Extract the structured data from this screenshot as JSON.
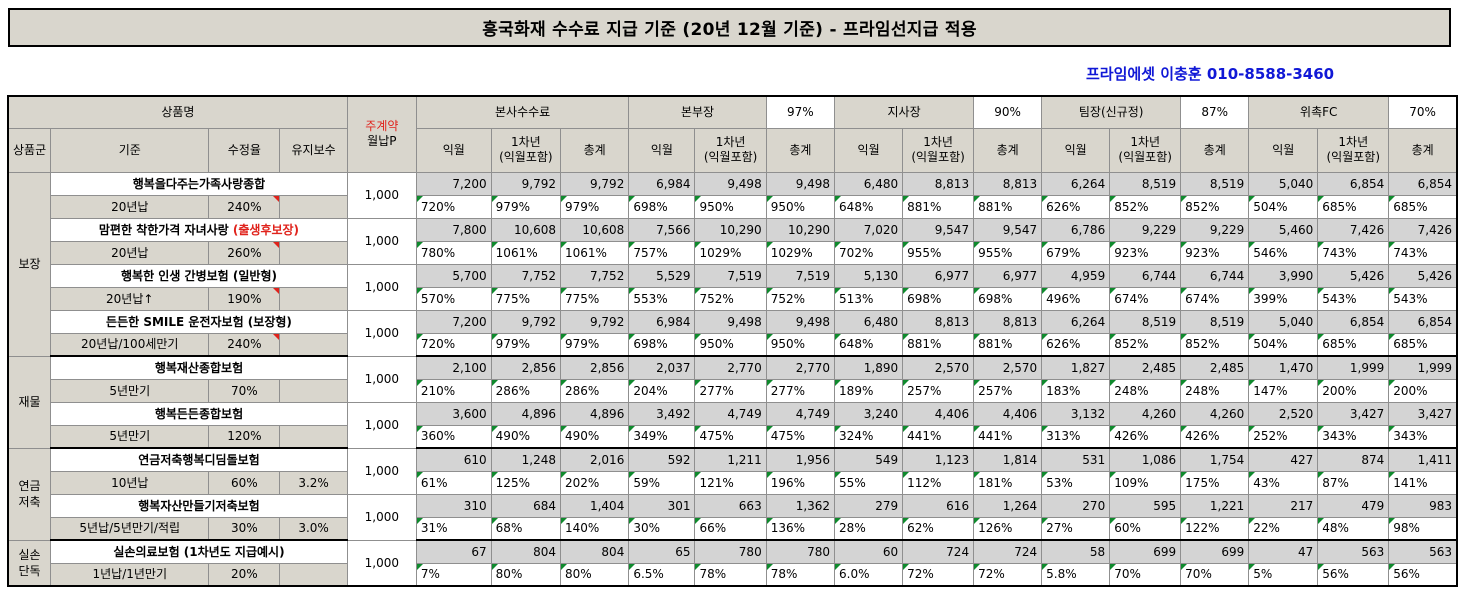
{
  "title": "흥국화재 수수료 지급 기준 (20년 12월 기준) - 프라임선지급 적용",
  "agent": "프라임에셋 이충훈 010-8588-3460",
  "header": {
    "product_name": "상품명",
    "main_contract_l1": "주계약",
    "main_contract_l2": "월납P",
    "hq_fee": "본사수수료",
    "bonbu": "본부장",
    "bonbu_pct": "97%",
    "jisa": "지사장",
    "jisa_pct": "90%",
    "team": "팀장(신규정)",
    "team_pct": "87%",
    "fc": "위촉FC",
    "fc_pct": "70%",
    "group": "상품군",
    "basis": "기준",
    "mod_rate": "수정율",
    "maint": "유지보수",
    "ikwol": "익월",
    "year1_l1": "1차년",
    "year1_l2": "(익월포함)",
    "total": "총계"
  },
  "groups": [
    {
      "label_lines": [
        "보장"
      ]
    },
    {
      "label_lines": [
        "재물"
      ]
    },
    {
      "label_lines": [
        "연금",
        "저축"
      ]
    },
    {
      "label_lines": [
        "실손",
        "단독"
      ]
    }
  ],
  "products": [
    {
      "name": "행복을다주는가족사랑종합",
      "name_red": "",
      "basis": "20년납",
      "mod": "240%",
      "maint": "",
      "premium": "1,000",
      "amounts": [
        "7,200",
        "9,792",
        "9,792",
        "6,984",
        "9,498",
        "9,498",
        "6,480",
        "8,813",
        "8,813",
        "6,264",
        "8,519",
        "8,519",
        "5,040",
        "6,854",
        "6,854"
      ],
      "rates": [
        "720%",
        "979%",
        "979%",
        "698%",
        "950%",
        "950%",
        "648%",
        "881%",
        "881%",
        "626%",
        "852%",
        "852%",
        "504%",
        "685%",
        "685%"
      ]
    },
    {
      "name": "맘편한 착한가격 자녀사랑 ",
      "name_red": "(출생후보장)",
      "basis": "20년납",
      "mod": "260%",
      "maint": "",
      "premium": "1,000",
      "amounts": [
        "7,800",
        "10,608",
        "10,608",
        "7,566",
        "10,290",
        "10,290",
        "7,020",
        "9,547",
        "9,547",
        "6,786",
        "9,229",
        "9,229",
        "5,460",
        "7,426",
        "7,426"
      ],
      "rates": [
        "780%",
        "1061%",
        "1061%",
        "757%",
        "1029%",
        "1029%",
        "702%",
        "955%",
        "955%",
        "679%",
        "923%",
        "923%",
        "546%",
        "743%",
        "743%"
      ]
    },
    {
      "name": "행복한 인생 간병보험 (일반형)",
      "name_red": "",
      "basis": "20년납↑",
      "mod": "190%",
      "maint": "",
      "premium": "1,000",
      "amounts": [
        "5,700",
        "7,752",
        "7,752",
        "5,529",
        "7,519",
        "7,519",
        "5,130",
        "6,977",
        "6,977",
        "4,959",
        "6,744",
        "6,744",
        "3,990",
        "5,426",
        "5,426"
      ],
      "rates": [
        "570%",
        "775%",
        "775%",
        "553%",
        "752%",
        "752%",
        "513%",
        "698%",
        "698%",
        "496%",
        "674%",
        "674%",
        "399%",
        "543%",
        "543%"
      ]
    },
    {
      "name": "든든한 SMILE 운전자보험 (보장형)",
      "name_red": "",
      "basis": "20년납/100세만기",
      "mod": "240%",
      "maint": "",
      "premium": "1,000",
      "amounts": [
        "7,200",
        "9,792",
        "9,792",
        "6,984",
        "9,498",
        "9,498",
        "6,480",
        "8,813",
        "8,813",
        "6,264",
        "8,519",
        "8,519",
        "5,040",
        "6,854",
        "6,854"
      ],
      "rates": [
        "720%",
        "979%",
        "979%",
        "698%",
        "950%",
        "950%",
        "648%",
        "881%",
        "881%",
        "626%",
        "852%",
        "852%",
        "504%",
        "685%",
        "685%"
      ]
    },
    {
      "name": "행복재산종합보험",
      "name_red": "",
      "basis": "5년만기",
      "mod": "70%",
      "maint": "",
      "premium": "1,000",
      "amounts": [
        "2,100",
        "2,856",
        "2,856",
        "2,037",
        "2,770",
        "2,770",
        "1,890",
        "2,570",
        "2,570",
        "1,827",
        "2,485",
        "2,485",
        "1,470",
        "1,999",
        "1,999"
      ],
      "rates": [
        "210%",
        "286%",
        "286%",
        "204%",
        "277%",
        "277%",
        "189%",
        "257%",
        "257%",
        "183%",
        "248%",
        "248%",
        "147%",
        "200%",
        "200%"
      ]
    },
    {
      "name": "행복든든종합보험",
      "name_red": "",
      "basis": "5년만기",
      "mod": "120%",
      "maint": "",
      "premium": "1,000",
      "amounts": [
        "3,600",
        "4,896",
        "4,896",
        "3,492",
        "4,749",
        "4,749",
        "3,240",
        "4,406",
        "4,406",
        "3,132",
        "4,260",
        "4,260",
        "2,520",
        "3,427",
        "3,427"
      ],
      "rates": [
        "360%",
        "490%",
        "490%",
        "349%",
        "475%",
        "475%",
        "324%",
        "441%",
        "441%",
        "313%",
        "426%",
        "426%",
        "252%",
        "343%",
        "343%"
      ]
    },
    {
      "name": "연금저축행복디딤돌보험",
      "name_red": "",
      "basis": "10년납",
      "mod": "60%",
      "maint": "3.2%",
      "premium": "1,000",
      "amounts": [
        "610",
        "1,248",
        "2,016",
        "592",
        "1,211",
        "1,956",
        "549",
        "1,123",
        "1,814",
        "531",
        "1,086",
        "1,754",
        "427",
        "874",
        "1,411"
      ],
      "rates": [
        "61%",
        "125%",
        "202%",
        "59%",
        "121%",
        "196%",
        "55%",
        "112%",
        "181%",
        "53%",
        "109%",
        "175%",
        "43%",
        "87%",
        "141%"
      ]
    },
    {
      "name": "행복자산만들기저축보험",
      "name_red": "",
      "basis": "5년납/5년만기/적립",
      "mod": "30%",
      "maint": "3.0%",
      "premium": "1,000",
      "amounts": [
        "310",
        "684",
        "1,404",
        "301",
        "663",
        "1,362",
        "279",
        "616",
        "1,264",
        "270",
        "595",
        "1,221",
        "217",
        "479",
        "983"
      ],
      "rates": [
        "31%",
        "68%",
        "140%",
        "30%",
        "66%",
        "136%",
        "28%",
        "62%",
        "126%",
        "27%",
        "60%",
        "122%",
        "22%",
        "48%",
        "98%"
      ]
    },
    {
      "name": "실손의료보험 (1차년도 지급예시)",
      "name_red": "",
      "basis": "1년납/1년만기",
      "mod": "20%",
      "maint": "",
      "premium": "1,000",
      "amounts": [
        "67",
        "804",
        "804",
        "65",
        "780",
        "780",
        "60",
        "724",
        "724",
        "58",
        "699",
        "699",
        "47",
        "563",
        "563"
      ],
      "rates": [
        "7%",
        "80%",
        "80%",
        "6.5%",
        "78%",
        "78%",
        "6.0%",
        "72%",
        "72%",
        "5.8%",
        "70%",
        "70%",
        "5%",
        "56%",
        "56%"
      ]
    }
  ]
}
